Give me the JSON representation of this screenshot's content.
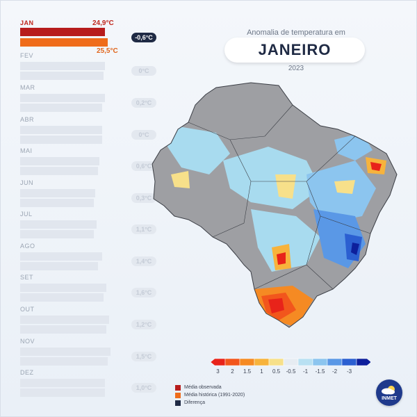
{
  "header": {
    "subtitle": "Anomalia de temperatura em",
    "title": "JANEIRO",
    "year": "2023"
  },
  "months": [
    {
      "label": "JAN",
      "obs": "24,9°C",
      "hist": "25,5°C",
      "diff": "-0,6°C"
    },
    {
      "label": "FEV",
      "diff": "0°C"
    },
    {
      "label": "MAR",
      "diff": "0,2°C"
    },
    {
      "label": "ABR",
      "diff": "0°C"
    },
    {
      "label": "MAI",
      "diff": "0,6°C"
    },
    {
      "label": "JUN",
      "diff": "0,3°C"
    },
    {
      "label": "JUL",
      "diff": "1,1°C"
    },
    {
      "label": "AGO",
      "diff": "1,4°C"
    },
    {
      "label": "SET",
      "diff": "1,6°C"
    },
    {
      "label": "OUT",
      "diff": "1,2°C"
    },
    {
      "label": "NOV",
      "diff": "1,5°C"
    },
    {
      "label": "DEZ",
      "diff": "1,0°C"
    }
  ],
  "scale": {
    "labels": [
      "3",
      "2",
      "1.5",
      "1",
      "0.5",
      "-0.5",
      "-1",
      "-1.5",
      "-2",
      "-3"
    ],
    "colors": [
      "#e8231a",
      "#f2561c",
      "#f58a23",
      "#f7b33c",
      "#f7e08a",
      "#e6ecf2",
      "#b8e0f2",
      "#8cc5ef",
      "#5a98e6",
      "#2b5fd1",
      "#0d1f9c"
    ]
  },
  "legend": [
    {
      "label": "Média observada",
      "color": "#b71c1c"
    },
    {
      "label": "Média histórica (1991-2020)",
      "color": "#ef6c1a"
    },
    {
      "label": "Diferença",
      "color": "#1f2a44"
    }
  ],
  "logo": {
    "text": "INMET"
  }
}
